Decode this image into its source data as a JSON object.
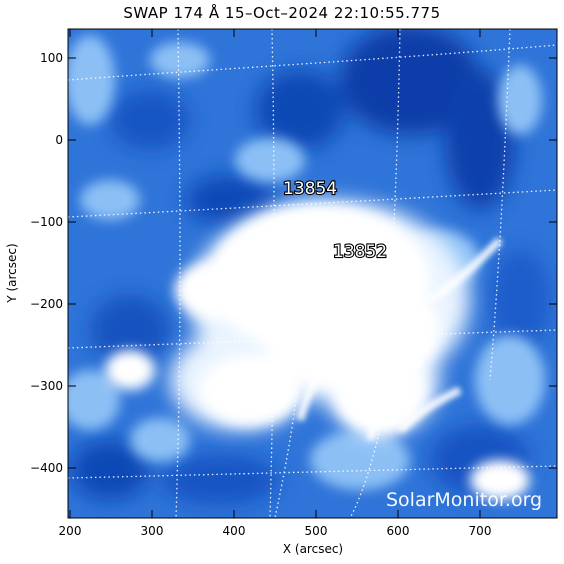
{
  "title": "SWAP 174 Å 15–Oct–2024 22:10:55.775",
  "axes": {
    "x_label": "X (arcsec)",
    "y_label": "Y (arcsec)",
    "x_ticks": [
      "200",
      "300",
      "400",
      "500",
      "600",
      "700"
    ],
    "y_ticks": [
      "100",
      "0",
      "−100",
      "−200",
      "−300",
      "−400"
    ]
  },
  "regions": [
    {
      "label": "13854"
    },
    {
      "label": "13852"
    }
  ],
  "watermark": "SolarMonitor.org",
  "colors": {
    "dark_blue": "#0a3fa8",
    "mid_blue": "#2f7be0",
    "light_blue": "#8cc0f5",
    "white": "#ffffff"
  }
}
